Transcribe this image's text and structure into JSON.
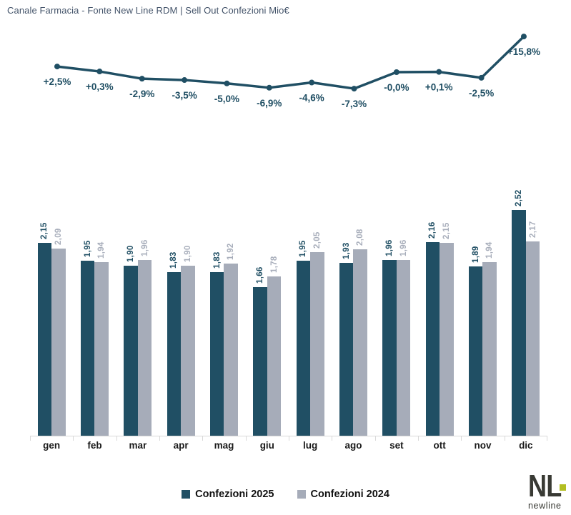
{
  "title": "Canale Farmacia - Fonte New Line RDM | Sell Out Confezioni Mio€",
  "colors": {
    "series_2025": "#204F64",
    "series_2024": "#A6ACB9",
    "label_2024": "#A8AEBB",
    "line": "#204F64",
    "pct_text": "#1F4E63",
    "axis": "#D9D9D9",
    "title_text": "#44546A",
    "logo_dark": "#393A34",
    "logo_green": "#B3BE22"
  },
  "chart_data": [
    {
      "type": "line",
      "title": "YoY % change by month",
      "x": [
        "gen",
        "feb",
        "mar",
        "apr",
        "mag",
        "giu",
        "lug",
        "ago",
        "set",
        "ott",
        "nov",
        "dic"
      ],
      "values": [
        2.5,
        0.3,
        -2.9,
        -3.5,
        -5.0,
        -6.9,
        -4.6,
        -7.3,
        -0.0,
        0.1,
        -2.5,
        15.8
      ],
      "labels": [
        "+2,5%",
        "+0,3%",
        "-2,9%",
        "-3,5%",
        "-5,0%",
        "-6,9%",
        "-4,6%",
        "-7,3%",
        "-0,0%",
        "+0,1%",
        "-2,5%",
        "+15,8%"
      ],
      "legend_position": "none",
      "grid": false
    },
    {
      "type": "bar",
      "categories": [
        "gen",
        "feb",
        "mar",
        "apr",
        "mag",
        "giu",
        "lug",
        "ago",
        "set",
        "ott",
        "nov",
        "dic"
      ],
      "series": [
        {
          "name": "Confezioni 2025",
          "values": [
            2.15,
            1.95,
            1.9,
            1.83,
            1.83,
            1.66,
            1.95,
            1.93,
            1.96,
            2.16,
            1.89,
            2.52
          ],
          "labels": [
            "2,15",
            "1,95",
            "1,90",
            "1,83",
            "1,83",
            "1,66",
            "1,95",
            "1,93",
            "1,96",
            "2,16",
            "1,89",
            "2,52"
          ]
        },
        {
          "name": "Confezioni 2024",
          "values": [
            2.09,
            1.94,
            1.96,
            1.9,
            1.92,
            1.78,
            2.05,
            2.08,
            1.96,
            2.15,
            1.94,
            2.17
          ],
          "labels": [
            "2,09",
            "1,94",
            "1,96",
            "1,90",
            "1,92",
            "1,78",
            "2,05",
            "2,08",
            "1,96",
            "2,15",
            "1,94",
            "2,17"
          ]
        }
      ],
      "ylim": [
        0,
        2.8
      ],
      "grid": false,
      "legend_position": "bottom"
    }
  ],
  "legend": {
    "items": [
      {
        "label": "Confezioni 2025"
      },
      {
        "label": "Confezioni 2024"
      }
    ]
  },
  "logo": {
    "monogram": "NL",
    "name": "newline"
  }
}
